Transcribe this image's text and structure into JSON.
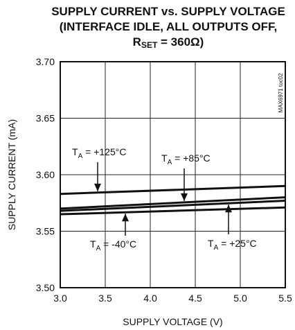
{
  "chart_data": {
    "type": "line",
    "title_lines": [
      "SUPPLY CURRENT vs. SUPPLY VOLTAGE",
      "(INTERFACE IDLE, ALL OUTPUTS OFF,",
      {
        "main": "R",
        "sub": "SET",
        "rest": " = 360Ω)"
      }
    ],
    "xlabel": "SUPPLY VOLTAGE (V)",
    "ylabel": "SUPPLY CURRENT (mA)",
    "xlim": [
      3.0,
      5.5
    ],
    "ylim": [
      3.5,
      3.7
    ],
    "xticks": [
      "3.0",
      "3.5",
      "4.0",
      "4.5",
      "5.0",
      "5.5"
    ],
    "yticks": [
      "3.50",
      "3.55",
      "3.60",
      "3.65",
      "3.70"
    ],
    "grid": true,
    "watermark": "MAX6971 toc02",
    "series": [
      {
        "name": "TA = +125°C",
        "x": [
          3.0,
          5.5
        ],
        "y": [
          3.583,
          3.59
        ]
      },
      {
        "name": "TA = +85°C",
        "x": [
          3.0,
          5.5
        ],
        "y": [
          3.57,
          3.58
        ]
      },
      {
        "name": "TA = +25°C",
        "x": [
          3.0,
          5.5
        ],
        "y": [
          3.568,
          3.577
        ]
      },
      {
        "name": "TA = -40°C",
        "x": [
          3.0,
          5.5
        ],
        "y": [
          3.565,
          3.571
        ]
      }
    ],
    "annotations": [
      {
        "sub": "A",
        "text": " = +125°C",
        "series": 0
      },
      {
        "sub": "A",
        "text": " = +85°C",
        "series": 1
      },
      {
        "sub": "A",
        "text": " = -40°C",
        "series": 3
      },
      {
        "sub": "A",
        "text": " = +25°C",
        "series": 2
      }
    ]
  }
}
